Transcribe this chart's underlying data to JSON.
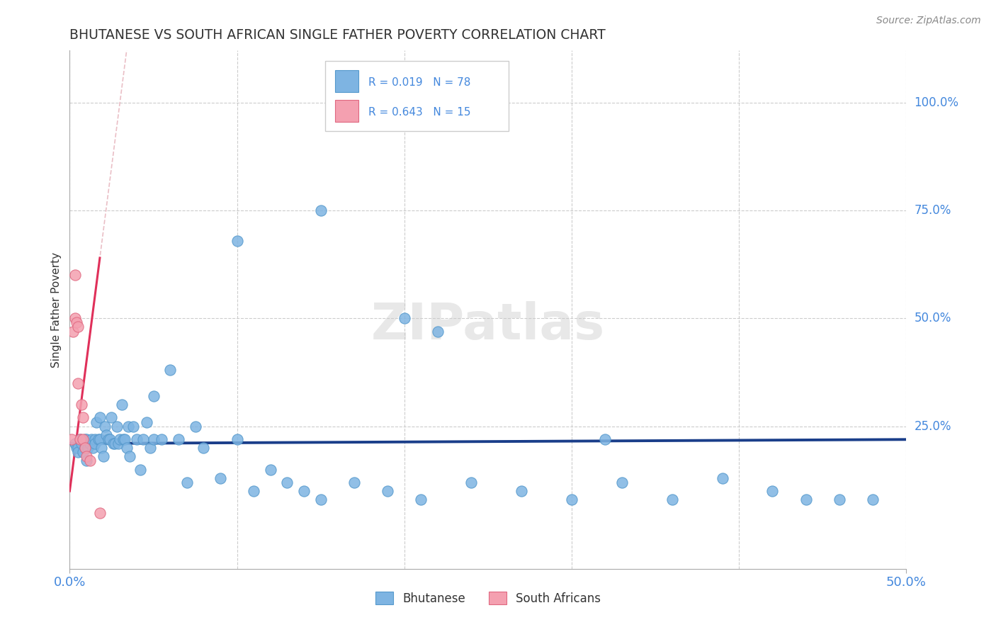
{
  "title": "BHUTANESE VS SOUTH AFRICAN SINGLE FATHER POVERTY CORRELATION CHART",
  "source": "Source: ZipAtlas.com",
  "ylabel": "Single Father Poverty",
  "y_tick_labels": [
    "100.0%",
    "75.0%",
    "50.0%",
    "25.0%"
  ],
  "y_tick_values": [
    1.0,
    0.75,
    0.5,
    0.25
  ],
  "xlim": [
    0.0,
    0.5
  ],
  "ylim": [
    -0.08,
    1.12
  ],
  "legend_r1": "R = 0.019",
  "legend_n1": "N = 78",
  "legend_r2": "R = 0.643",
  "legend_n2": "N = 15",
  "blue_color": "#7EB4E2",
  "pink_color": "#F4A0B0",
  "blue_line_color": "#1A3E8A",
  "pink_line_color": "#E0305A",
  "dashed_line_color": "#E8B8C0",
  "grid_color": "#CCCCCC",
  "title_color": "#333333",
  "axis_label_color": "#4488DD",
  "r_value_color": "#4488DD",
  "watermark": "ZIPatlas",
  "bhutanese_x": [
    0.003,
    0.004,
    0.005,
    0.005,
    0.006,
    0.007,
    0.008,
    0.009,
    0.009,
    0.01,
    0.01,
    0.011,
    0.012,
    0.013,
    0.014,
    0.015,
    0.015,
    0.016,
    0.017,
    0.018,
    0.018,
    0.019,
    0.02,
    0.021,
    0.022,
    0.023,
    0.024,
    0.025,
    0.026,
    0.027,
    0.028,
    0.029,
    0.03,
    0.031,
    0.032,
    0.033,
    0.034,
    0.035,
    0.036,
    0.038,
    0.04,
    0.042,
    0.044,
    0.046,
    0.048,
    0.05,
    0.055,
    0.06,
    0.065,
    0.07,
    0.075,
    0.08,
    0.09,
    0.1,
    0.11,
    0.12,
    0.13,
    0.14,
    0.15,
    0.17,
    0.19,
    0.21,
    0.24,
    0.27,
    0.3,
    0.33,
    0.36,
    0.39,
    0.42,
    0.44,
    0.46,
    0.48,
    0.2,
    0.32,
    0.1,
    0.22,
    0.05,
    0.15
  ],
  "bhutanese_y": [
    0.21,
    0.2,
    0.2,
    0.19,
    0.22,
    0.21,
    0.19,
    0.22,
    0.2,
    0.22,
    0.17,
    0.2,
    0.21,
    0.22,
    0.2,
    0.22,
    0.21,
    0.26,
    0.22,
    0.22,
    0.27,
    0.2,
    0.18,
    0.25,
    0.23,
    0.22,
    0.22,
    0.27,
    0.21,
    0.21,
    0.25,
    0.21,
    0.22,
    0.3,
    0.22,
    0.22,
    0.2,
    0.25,
    0.18,
    0.25,
    0.22,
    0.15,
    0.22,
    0.26,
    0.2,
    0.22,
    0.22,
    0.38,
    0.22,
    0.12,
    0.25,
    0.2,
    0.13,
    0.22,
    0.1,
    0.15,
    0.12,
    0.1,
    0.08,
    0.12,
    0.1,
    0.08,
    0.12,
    0.1,
    0.08,
    0.12,
    0.08,
    0.13,
    0.1,
    0.08,
    0.08,
    0.08,
    0.5,
    0.22,
    0.68,
    0.47,
    0.32,
    0.75
  ],
  "sa_x": [
    0.001,
    0.002,
    0.003,
    0.003,
    0.004,
    0.005,
    0.005,
    0.006,
    0.007,
    0.008,
    0.008,
    0.009,
    0.01,
    0.012,
    0.018
  ],
  "sa_y": [
    0.22,
    0.47,
    0.5,
    0.6,
    0.49,
    0.48,
    0.35,
    0.22,
    0.3,
    0.22,
    0.27,
    0.2,
    0.18,
    0.17,
    0.05
  ]
}
